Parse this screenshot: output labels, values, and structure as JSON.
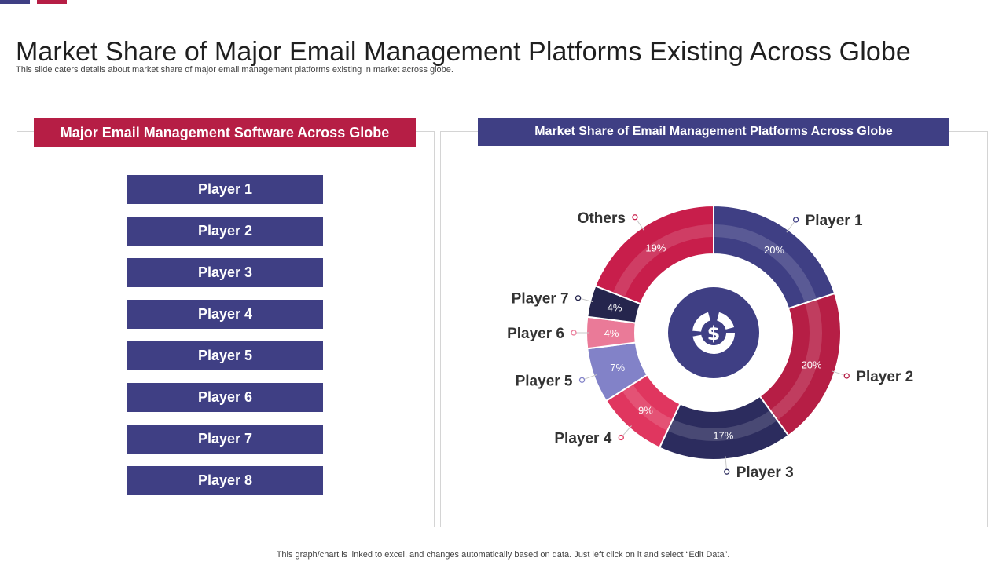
{
  "page": {
    "title": "Market Share of Major Email Management Platforms Existing Across Globe",
    "subtitle": "This slide caters details about market share of major email management platforms existing in market across globe.",
    "footer_note": "This graph/chart is linked to excel,  and changes automatically based on data. Just left click on it and select “Edit Data”."
  },
  "left_panel": {
    "header": "Major Email Management Software Across Globe",
    "players": [
      "Player 1",
      "Player 2",
      "Player 3",
      "Player 4",
      "Player 5",
      "Player 6",
      "Player 7",
      "Player 8"
    ]
  },
  "right_panel": {
    "header": "Market Share of Email Management Platforms Across Globe"
  },
  "center_icon": "dollar-donut-icon",
  "chart_data": {
    "type": "pie",
    "variant": "donut",
    "title": "Market Share of Email Management Platforms Across Globe",
    "unit": "%",
    "categories": [
      "Player 1",
      "Player 2",
      "Player 3",
      "Player 4",
      "Player 5",
      "Player 6",
      "Player 7",
      "Others"
    ],
    "values": [
      20,
      20,
      17,
      9,
      7,
      4,
      4,
      19
    ],
    "data_labels": [
      "20%",
      "20%",
      "17%",
      "9%",
      "7%",
      "4%",
      "4%",
      "19%"
    ],
    "colors": [
      "#3f3f84",
      "#b61e45",
      "#2c2c5e",
      "#e0365f",
      "#8282c8",
      "#ea7a98",
      "#25254d",
      "#c81e4b"
    ]
  }
}
